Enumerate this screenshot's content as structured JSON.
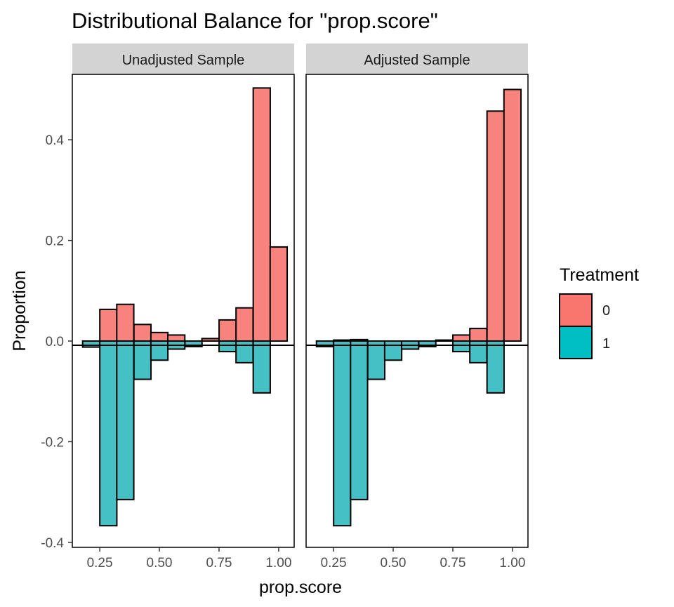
{
  "title": "Distributional Balance for \"prop.score\"",
  "colors": {
    "treatment_0": "#f8827c",
    "treatment_1": "#45c1c5",
    "legend_0": "#f8766d",
    "legend_1": "#00bfc4",
    "strip": "#d3d3d3"
  },
  "chart_data": {
    "type": "bar",
    "title": "Distributional Balance for \"prop.score\"",
    "xlabel": "prop.score",
    "ylabel": "Proportion",
    "xlim": [
      0.135,
      1.065
    ],
    "ylim": [
      -0.41,
      0.53
    ],
    "x_ticks": [
      0.25,
      0.5,
      0.75,
      1.0
    ],
    "x_tick_labels": [
      "0.25",
      "0.50",
      "0.75",
      "1.00"
    ],
    "y_ticks": [
      -0.4,
      -0.2,
      0.0,
      0.2,
      0.4
    ],
    "y_tick_labels": [
      "-0.4",
      "-0.2",
      "0.0",
      "0.2",
      "0.4"
    ],
    "bin_width": 0.0714,
    "bin_centers": [
      0.214,
      0.286,
      0.357,
      0.429,
      0.5,
      0.571,
      0.643,
      0.714,
      0.786,
      0.857,
      0.929,
      1.0
    ],
    "legend": {
      "title": "Treatment",
      "position": "right",
      "entries": [
        "0",
        "1"
      ]
    },
    "grid": false,
    "panels": [
      {
        "name": "Unadjusted Sample",
        "series": [
          {
            "name": "0",
            "values": [
              0.0,
              0.063,
              0.073,
              0.033,
              0.017,
              0.012,
              0.0,
              0.005,
              0.042,
              0.066,
              0.503,
              0.187
            ]
          },
          {
            "name": "1",
            "values": [
              -0.012,
              -0.367,
              -0.315,
              -0.076,
              -0.038,
              -0.016,
              -0.011,
              0.0,
              -0.021,
              -0.043,
              -0.103,
              0.0
            ]
          }
        ]
      },
      {
        "name": "Adjusted Sample",
        "series": [
          {
            "name": "0",
            "values": [
              0.0,
              0.002,
              0.003,
              0.0,
              0.0,
              0.0,
              0.0,
              0.002,
              0.012,
              0.025,
              0.457,
              0.5
            ]
          },
          {
            "name": "1",
            "values": [
              -0.011,
              -0.367,
              -0.315,
              -0.076,
              -0.038,
              -0.016,
              -0.011,
              0.0,
              -0.021,
              -0.043,
              -0.103,
              0.0
            ]
          }
        ]
      }
    ]
  }
}
